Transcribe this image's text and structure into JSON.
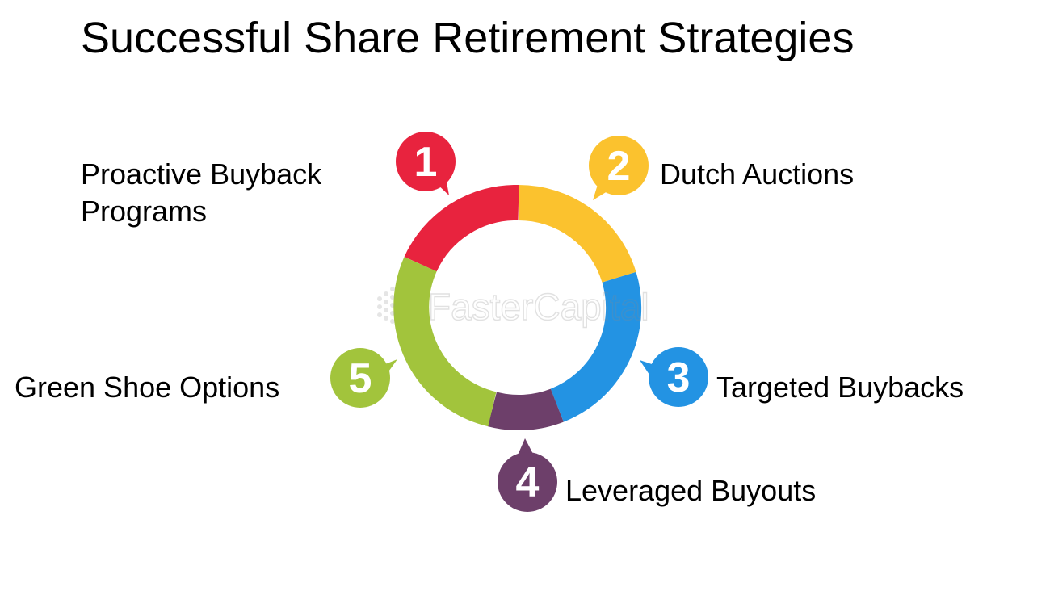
{
  "title": "Successful Share Retirement Strategies",
  "watermark": "FasterCapital",
  "steps": [
    {
      "number": "1",
      "label_lines": [
        "Proactive Buyback",
        "Programs"
      ],
      "color": "#e8233e"
    },
    {
      "number": "2",
      "label_lines": [
        "Dutch Auctions"
      ],
      "color": "#fbc22e"
    },
    {
      "number": "3",
      "label_lines": [
        "Targeted Buybacks"
      ],
      "color": "#2393e3"
    },
    {
      "number": "4",
      "label_lines": [
        "Leveraged Buyouts"
      ],
      "color": "#6d3f6a"
    },
    {
      "number": "5",
      "label_lines": [
        "Green Shoe Options"
      ],
      "color": "#a2c43c"
    }
  ]
}
